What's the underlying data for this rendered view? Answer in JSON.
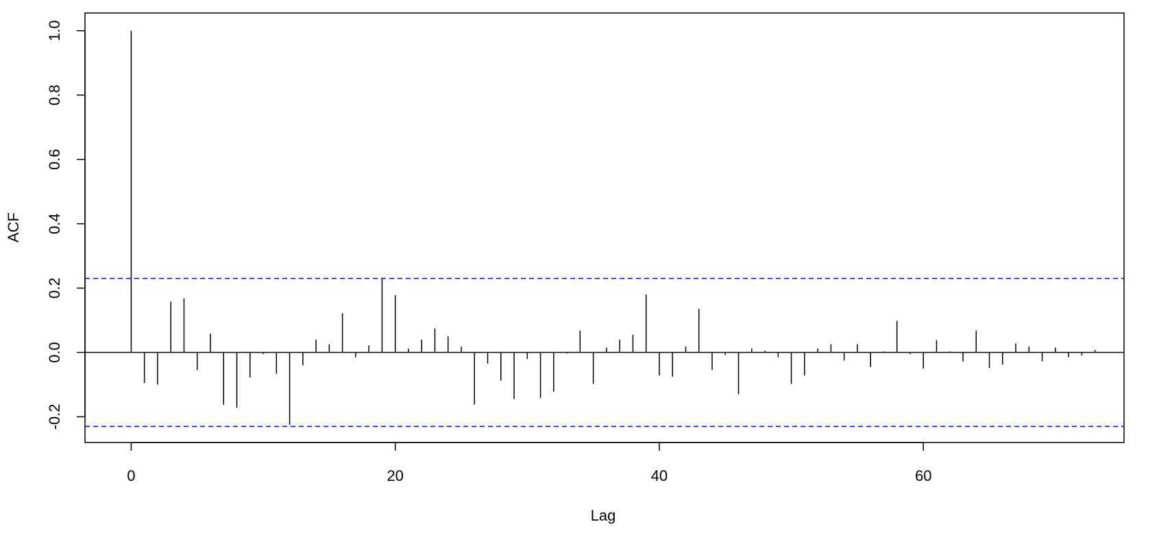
{
  "chart_data": {
    "type": "bar",
    "xlabel": "Lag",
    "ylabel": "ACF",
    "xlim": [
      -3.5,
      75.2
    ],
    "ylim": [
      -0.28,
      1.055
    ],
    "x_ticks": [
      {
        "value": 0,
        "label": "0"
      },
      {
        "value": 20,
        "label": "20"
      },
      {
        "value": 40,
        "label": "40"
      },
      {
        "value": 60,
        "label": "60"
      }
    ],
    "y_ticks": [
      {
        "value": -0.2,
        "label": "-0.2"
      },
      {
        "value": 0.0,
        "label": "0.0"
      },
      {
        "value": 0.2,
        "label": "0.2"
      },
      {
        "value": 0.4,
        "label": "0.4"
      },
      {
        "value": 0.6,
        "label": "0.6"
      },
      {
        "value": 0.8,
        "label": "0.8"
      },
      {
        "value": 1.0,
        "label": "1.0"
      }
    ],
    "confidence_bound": 0.23,
    "confidence_color": "#0000ff",
    "bar_color": "#000000",
    "lags": [
      0,
      1,
      2,
      3,
      4,
      5,
      6,
      7,
      8,
      9,
      10,
      11,
      12,
      13,
      14,
      15,
      16,
      17,
      18,
      19,
      20,
      21,
      22,
      23,
      24,
      25,
      26,
      27,
      28,
      29,
      30,
      31,
      32,
      33,
      34,
      35,
      36,
      37,
      38,
      39,
      40,
      41,
      42,
      43,
      44,
      45,
      46,
      47,
      48,
      49,
      50,
      51,
      52,
      53,
      54,
      55,
      56,
      57,
      58,
      59,
      60,
      61,
      62,
      63,
      64,
      65,
      66,
      67,
      68,
      69,
      70,
      71,
      72,
      73
    ],
    "values": [
      1.0,
      -0.095,
      -0.1,
      0.158,
      0.168,
      -0.055,
      0.058,
      -0.163,
      -0.172,
      -0.078,
      -0.005,
      -0.066,
      -0.225,
      -0.04,
      0.04,
      0.025,
      0.122,
      -0.015,
      0.022,
      0.232,
      0.178,
      0.012,
      0.04,
      0.075,
      0.05,
      0.018,
      -0.162,
      -0.035,
      -0.088,
      -0.145,
      -0.02,
      -0.142,
      -0.122,
      -0.003,
      0.068,
      -0.098,
      0.015,
      0.04,
      0.055,
      0.18,
      -0.072,
      -0.075,
      0.018,
      0.135,
      -0.055,
      -0.008,
      -0.13,
      0.012,
      0.005,
      -0.015,
      -0.098,
      -0.072,
      0.012,
      0.025,
      -0.025,
      0.025,
      -0.045,
      0.003,
      0.098,
      -0.005,
      -0.05,
      0.038,
      0.003,
      -0.028,
      0.068,
      -0.048,
      -0.038,
      0.028,
      0.018,
      -0.028,
      0.015,
      -0.015,
      -0.01,
      0.008
    ]
  }
}
